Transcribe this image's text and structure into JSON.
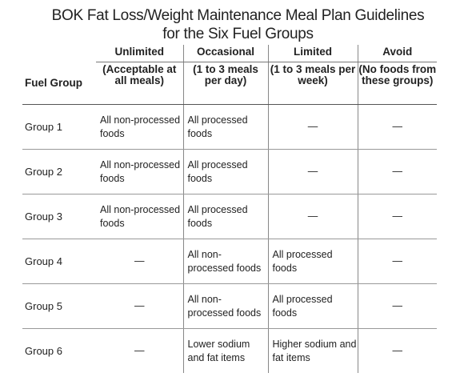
{
  "title": {
    "line1": "BOK Fat Loss/Weight Maintenance Meal Plan Guidelines",
    "line2": "for the Six Fuel Groups"
  },
  "header": {
    "fuel_group_label": "Fuel Group",
    "columns": [
      {
        "name": "Unlimited",
        "desc": "(Acceptable at all meals)"
      },
      {
        "name": "Occasional",
        "desc": "(1 to 3 meals per day)"
      },
      {
        "name": "Limited",
        "desc": "(1 to 3 meals per week)"
      },
      {
        "name": "Avoid",
        "desc": "(No foods from these groups)"
      }
    ]
  },
  "rows": [
    {
      "group": "Group 1",
      "cells": [
        "All non-processed foods",
        "All processed foods",
        "—",
        "—"
      ]
    },
    {
      "group": "Group 2",
      "cells": [
        "All non-processed foods",
        "All processed foods",
        "—",
        "—"
      ]
    },
    {
      "group": "Group 3",
      "cells": [
        "All non-processed foods",
        "All processed foods",
        "—",
        "—"
      ]
    },
    {
      "group": "Group 4",
      "cells": [
        "—",
        "All non-processed foods",
        "All processed foods",
        "—"
      ]
    },
    {
      "group": "Group 5",
      "cells": [
        "—",
        "All non-processed foods",
        "All processed foods",
        "—"
      ]
    },
    {
      "group": "Group 6",
      "cells": [
        "—",
        "Lower sodium and fat items",
        "Higher sodium and fat items",
        "—"
      ]
    }
  ]
}
